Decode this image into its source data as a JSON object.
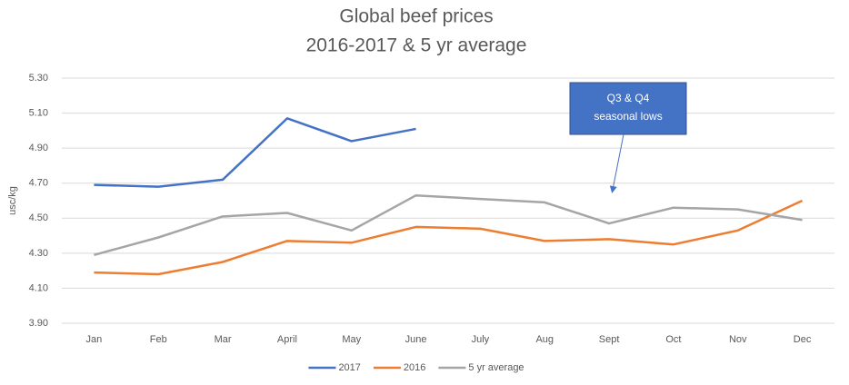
{
  "chart_data": {
    "type": "line",
    "title": [
      "Global beef prices",
      "2016-2017 & 5 yr average"
    ],
    "y_label": "usc/kg",
    "categories": [
      "Jan",
      "Feb",
      "Mar",
      "April",
      "May",
      "June",
      "July",
      "Aug",
      "Sept",
      "Oct",
      "Nov",
      "Dec"
    ],
    "series": [
      {
        "name": "2017",
        "color": "#4472c4",
        "values": [
          4.69,
          4.68,
          4.72,
          5.07,
          4.94,
          5.01,
          null,
          null,
          null,
          null,
          null,
          null
        ]
      },
      {
        "name": "2016",
        "color": "#ed7d31",
        "values": [
          4.19,
          4.18,
          4.25,
          4.37,
          4.36,
          4.45,
          4.44,
          4.37,
          4.38,
          4.35,
          4.43,
          4.6
        ]
      },
      {
        "name": "5 yr average",
        "color": "#a5a5a5",
        "values": [
          4.29,
          4.39,
          4.51,
          4.53,
          4.43,
          4.63,
          4.61,
          4.59,
          4.47,
          4.56,
          4.55,
          4.49
        ]
      }
    ],
    "ylim": [
      3.9,
      5.3
    ],
    "yticks": [
      {
        "value": 3.9,
        "label": "3.90"
      },
      {
        "value": 4.1,
        "label": "4.10"
      },
      {
        "value": 4.3,
        "label": "4.30"
      },
      {
        "value": 4.5,
        "label": "4.50"
      },
      {
        "value": 4.7,
        "label": "4.70"
      },
      {
        "value": 4.9,
        "label": "4.90"
      },
      {
        "value": 5.1,
        "label": "5.10"
      },
      {
        "value": 5.3,
        "label": "5.30"
      }
    ],
    "grid": true,
    "legend": "bottom",
    "annotation": {
      "lines": [
        "Q3 & Q4",
        "seasonal lows"
      ],
      "color": "#4472c4"
    }
  }
}
